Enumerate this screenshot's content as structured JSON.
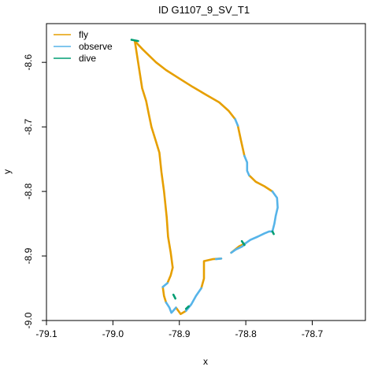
{
  "chart_data": {
    "type": "line",
    "title": "ID G1107_9_SV_T1",
    "xlabel": "x",
    "ylabel": "y",
    "xlim": [
      -79.1,
      -78.62
    ],
    "ylim": [
      -9.0,
      -8.54
    ],
    "x_ticks": [
      "-79.1",
      "-79.0",
      "-78.9",
      "-78.8",
      "-78.7"
    ],
    "x_tick_values": [
      -79.1,
      -79.0,
      -78.9,
      -78.8,
      -78.7
    ],
    "y_ticks": [
      "-8.6",
      "-8.7",
      "-8.8",
      "-8.9",
      "-9.0"
    ],
    "y_tick_values": [
      -8.6,
      -8.7,
      -8.8,
      -8.9,
      -9.0
    ],
    "grid": false,
    "legend_position": "top-left",
    "legend": [
      {
        "label": "fly",
        "color": "#E69F00"
      },
      {
        "label": "observe",
        "color": "#56B4E9"
      },
      {
        "label": "dive",
        "color": "#009E73"
      }
    ],
    "series": [
      {
        "name": "fly",
        "color": "#E69F00",
        "segments": [
          [
            [
              -78.967,
              -8.567
            ],
            [
              -78.962,
              -8.6
            ],
            [
              -78.956,
              -8.64
            ],
            [
              -78.95,
              -8.66
            ],
            [
              -78.946,
              -8.68
            ],
            [
              -78.942,
              -8.7
            ],
            [
              -78.936,
              -8.72
            ],
            [
              -78.93,
              -8.74
            ],
            [
              -78.927,
              -8.77
            ],
            [
              -78.923,
              -8.8
            ],
            [
              -78.919,
              -8.84
            ],
            [
              -78.917,
              -8.87
            ],
            [
              -78.913,
              -8.895
            ],
            [
              -78.91,
              -8.918
            ]
          ],
          [
            [
              -78.967,
              -8.567
            ],
            [
              -78.955,
              -8.58
            ],
            [
              -78.935,
              -8.6
            ],
            [
              -78.92,
              -8.612
            ],
            [
              -78.9,
              -8.625
            ],
            [
              -78.88,
              -8.638
            ],
            [
              -78.86,
              -8.65
            ],
            [
              -78.84,
              -8.662
            ],
            [
              -78.826,
              -8.675
            ],
            [
              -78.816,
              -8.688
            ]
          ],
          [
            [
              -78.812,
              -8.698
            ],
            [
              -78.807,
              -8.722
            ],
            [
              -78.802,
              -8.745
            ]
          ],
          [
            [
              -78.795,
              -8.775
            ],
            [
              -78.785,
              -8.785
            ],
            [
              -78.772,
              -8.792
            ],
            [
              -78.76,
              -8.8
            ]
          ],
          [
            [
              -78.91,
              -8.918
            ],
            [
              -78.913,
              -8.93
            ],
            [
              -78.918,
              -8.942
            ]
          ],
          [
            [
              -78.925,
              -8.948
            ],
            [
              -78.923,
              -8.962
            ],
            [
              -78.92,
              -8.972
            ]
          ],
          [
            [
              -78.905,
              -8.98
            ],
            [
              -78.898,
              -8.99
            ],
            [
              -78.89,
              -8.985
            ]
          ],
          [
            [
              -78.867,
              -8.95
            ],
            [
              -78.863,
              -8.935
            ],
            [
              -78.863,
              -8.918
            ],
            [
              -78.863,
              -8.908
            ],
            [
              -78.85,
              -8.905
            ],
            [
              -78.837,
              -8.904
            ]
          ],
          [
            [
              -78.822,
              -8.895
            ],
            [
              -78.81,
              -8.885
            ],
            [
              -78.8,
              -8.88
            ]
          ]
        ]
      },
      {
        "name": "observe",
        "color": "#56B4E9",
        "segments": [
          [
            [
              -78.816,
              -8.688
            ],
            [
              -78.812,
              -8.698
            ]
          ],
          [
            [
              -78.802,
              -8.745
            ],
            [
              -78.798,
              -8.755
            ],
            [
              -78.798,
              -8.768
            ],
            [
              -78.795,
              -8.775
            ]
          ],
          [
            [
              -78.76,
              -8.8
            ],
            [
              -78.753,
              -8.81
            ],
            [
              -78.752,
              -8.825
            ],
            [
              -78.755,
              -8.838
            ],
            [
              -78.757,
              -8.85
            ],
            [
              -78.76,
              -8.862
            ],
            [
              -78.765,
              -8.862
            ],
            [
              -78.772,
              -8.865
            ],
            [
              -78.782,
              -8.87
            ],
            [
              -78.793,
              -8.875
            ],
            [
              -78.8,
              -8.88
            ]
          ],
          [
            [
              -78.8,
              -8.88
            ],
            [
              -78.805,
              -8.885
            ],
            [
              -78.815,
              -8.89
            ],
            [
              -78.822,
              -8.895
            ]
          ],
          [
            [
              -78.837,
              -8.904
            ],
            [
              -78.845,
              -8.905
            ]
          ],
          [
            [
              -78.918,
              -8.942
            ],
            [
              -78.925,
              -8.948
            ]
          ],
          [
            [
              -78.92,
              -8.972
            ],
            [
              -78.915,
              -8.98
            ],
            [
              -78.912,
              -8.988
            ],
            [
              -78.905,
              -8.98
            ]
          ],
          [
            [
              -78.89,
              -8.985
            ],
            [
              -78.882,
              -8.975
            ],
            [
              -78.875,
              -8.962
            ],
            [
              -78.867,
              -8.95
            ]
          ]
        ]
      },
      {
        "name": "dive",
        "color": "#009E73",
        "segments": [
          [
            [
              -78.972,
              -8.565
            ],
            [
              -78.962,
              -8.567
            ]
          ],
          [
            [
              -78.76,
              -8.862
            ],
            [
              -78.758,
              -8.866
            ]
          ],
          [
            [
              -78.806,
              -8.877
            ],
            [
              -78.802,
              -8.883
            ]
          ],
          [
            [
              -78.909,
              -8.96
            ],
            [
              -78.906,
              -8.966
            ]
          ],
          [
            [
              -78.89,
              -8.982
            ],
            [
              -78.886,
              -8.978
            ]
          ]
        ]
      }
    ]
  }
}
